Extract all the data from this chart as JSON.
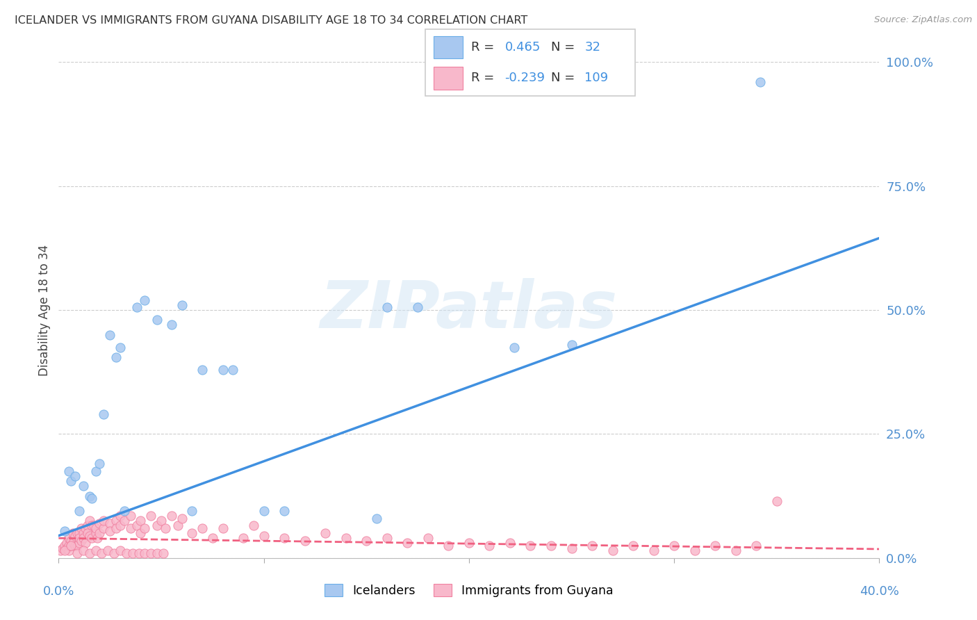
{
  "title": "ICELANDER VS IMMIGRANTS FROM GUYANA DISABILITY AGE 18 TO 34 CORRELATION CHART",
  "source": "Source: ZipAtlas.com",
  "ylabel": "Disability Age 18 to 34",
  "blue_R": 0.465,
  "blue_N": 32,
  "pink_R": -0.239,
  "pink_N": 109,
  "blue_scatter_color": "#A8C8F0",
  "blue_scatter_edge": "#6BAEE8",
  "pink_scatter_color": "#F8B8CB",
  "pink_scatter_edge": "#F080A0",
  "blue_line_color": "#4090E0",
  "pink_line_color": "#F06080",
  "right_tick_color": "#5090D0",
  "xlabel_color": "#5090D0",
  "xlim": [
    0.0,
    0.4
  ],
  "ylim": [
    0.0,
    1.0
  ],
  "yticks": [
    0.0,
    0.25,
    0.5,
    0.75,
    1.0
  ],
  "ytick_labels": [
    "0.0%",
    "25.0%",
    "50.0%",
    "75.0%",
    "100.0%"
  ],
  "legend_label_blue": "Icelanders",
  "legend_label_pink": "Immigrants from Guyana",
  "blue_scatter_x": [
    0.003,
    0.005,
    0.006,
    0.008,
    0.01,
    0.012,
    0.015,
    0.016,
    0.018,
    0.02,
    0.022,
    0.025,
    0.028,
    0.03,
    0.032,
    0.038,
    0.042,
    0.048,
    0.055,
    0.06,
    0.065,
    0.07,
    0.08,
    0.085,
    0.1,
    0.11,
    0.155,
    0.16,
    0.175,
    0.222,
    0.25,
    0.342
  ],
  "blue_scatter_y": [
    0.055,
    0.175,
    0.155,
    0.165,
    0.095,
    0.145,
    0.125,
    0.12,
    0.175,
    0.19,
    0.29,
    0.45,
    0.405,
    0.425,
    0.095,
    0.505,
    0.52,
    0.48,
    0.47,
    0.51,
    0.095,
    0.38,
    0.38,
    0.38,
    0.095,
    0.095,
    0.08,
    0.505,
    0.505,
    0.425,
    0.43,
    0.96
  ],
  "pink_scatter_x": [
    0.001,
    0.002,
    0.003,
    0.003,
    0.004,
    0.004,
    0.005,
    0.005,
    0.005,
    0.006,
    0.006,
    0.007,
    0.007,
    0.008,
    0.008,
    0.009,
    0.009,
    0.01,
    0.01,
    0.01,
    0.011,
    0.011,
    0.012,
    0.012,
    0.013,
    0.013,
    0.014,
    0.014,
    0.015,
    0.015,
    0.016,
    0.016,
    0.017,
    0.018,
    0.018,
    0.019,
    0.02,
    0.02,
    0.022,
    0.022,
    0.025,
    0.025,
    0.028,
    0.028,
    0.03,
    0.03,
    0.032,
    0.035,
    0.035,
    0.038,
    0.04,
    0.04,
    0.042,
    0.045,
    0.048,
    0.05,
    0.052,
    0.055,
    0.058,
    0.06,
    0.065,
    0.07,
    0.075,
    0.08,
    0.09,
    0.095,
    0.1,
    0.11,
    0.12,
    0.13,
    0.14,
    0.15,
    0.16,
    0.17,
    0.18,
    0.19,
    0.2,
    0.21,
    0.22,
    0.23,
    0.24,
    0.25,
    0.26,
    0.27,
    0.28,
    0.29,
    0.3,
    0.31,
    0.32,
    0.33,
    0.34,
    0.35,
    0.003,
    0.006,
    0.009,
    0.012,
    0.015,
    0.018,
    0.021,
    0.024,
    0.027,
    0.03,
    0.033,
    0.036,
    0.039,
    0.042,
    0.045,
    0.048,
    0.051
  ],
  "pink_scatter_y": [
    0.015,
    0.02,
    0.018,
    0.025,
    0.03,
    0.02,
    0.04,
    0.015,
    0.025,
    0.035,
    0.025,
    0.05,
    0.03,
    0.045,
    0.025,
    0.05,
    0.025,
    0.05,
    0.03,
    0.04,
    0.06,
    0.035,
    0.05,
    0.04,
    0.06,
    0.03,
    0.065,
    0.05,
    0.075,
    0.045,
    0.065,
    0.04,
    0.065,
    0.05,
    0.06,
    0.04,
    0.07,
    0.05,
    0.06,
    0.075,
    0.07,
    0.055,
    0.075,
    0.06,
    0.085,
    0.065,
    0.075,
    0.06,
    0.085,
    0.065,
    0.05,
    0.075,
    0.06,
    0.085,
    0.065,
    0.075,
    0.06,
    0.085,
    0.065,
    0.08,
    0.05,
    0.06,
    0.04,
    0.06,
    0.04,
    0.065,
    0.045,
    0.04,
    0.035,
    0.05,
    0.04,
    0.035,
    0.04,
    0.03,
    0.04,
    0.025,
    0.03,
    0.025,
    0.03,
    0.025,
    0.025,
    0.02,
    0.025,
    0.015,
    0.025,
    0.015,
    0.025,
    0.015,
    0.025,
    0.015,
    0.025,
    0.115,
    0.015,
    0.025,
    0.01,
    0.015,
    0.01,
    0.015,
    0.01,
    0.015,
    0.01,
    0.015,
    0.01,
    0.01,
    0.01,
    0.01,
    0.01,
    0.01,
    0.01
  ]
}
